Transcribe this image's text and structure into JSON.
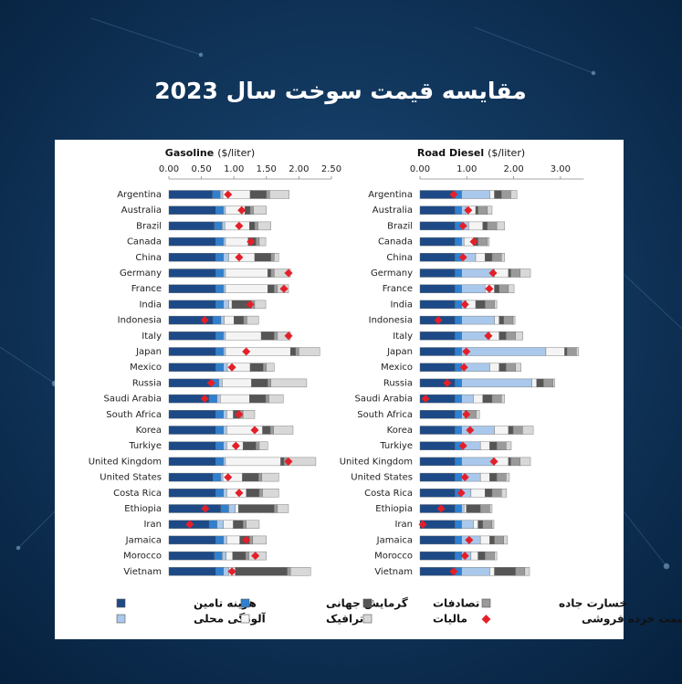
{
  "title": "مقایسه قیمت سوخت سال 2023",
  "chart_data": [
    {
      "type": "stacked-bar-h",
      "title": "Gasoline",
      "unit": "($/liter)",
      "categories": [
        "Argentina",
        "Australia",
        "Brazil",
        "Canada",
        "China",
        "Germany",
        "France",
        "India",
        "Indonesia",
        "Italy",
        "Japan",
        "Mexico",
        "Russia",
        "Saudi Arabia",
        "South Africa",
        "Korea",
        "Turkiye",
        "United Kingdom",
        "United States",
        "Costa Rica",
        "Ethiopia",
        "Iran",
        "Jamaica",
        "Morocco",
        "Vietnam"
      ],
      "xlim": [
        0,
        2.5
      ],
      "xticks": [
        {
          "value": 0,
          "label": "0.00"
        },
        {
          "value": 0.5,
          "label": "0.50"
        },
        {
          "value": 1,
          "label": "1.00"
        },
        {
          "value": 1.5,
          "label": "1.50"
        },
        {
          "value": 2,
          "label": "2.00"
        },
        {
          "value": 2.5,
          "label": "2.50"
        }
      ],
      "series": [
        {
          "name": "هزینه تامین",
          "color": "#1d4a86",
          "values": [
            0.67,
            0.72,
            0.7,
            0.72,
            0.72,
            0.72,
            0.72,
            0.72,
            0.68,
            0.72,
            0.72,
            0.72,
            0.65,
            0.62,
            0.72,
            0.72,
            0.72,
            0.72,
            0.68,
            0.72,
            0.8,
            0.62,
            0.72,
            0.7,
            0.72
          ]
        },
        {
          "name": "گرمایش جهانی",
          "color": "#2f80d0",
          "values": [
            0.12,
            0.12,
            0.12,
            0.12,
            0.12,
            0.12,
            0.12,
            0.12,
            0.12,
            0.12,
            0.12,
            0.12,
            0.12,
            0.12,
            0.12,
            0.12,
            0.12,
            0.12,
            0.12,
            0.12,
            0.12,
            0.12,
            0.12,
            0.12,
            0.12
          ]
        },
        {
          "name": "آلودگی محلی",
          "color": "#a9c8ec",
          "values": [
            0.04,
            0.03,
            0.04,
            0.03,
            0.08,
            0.03,
            0.03,
            0.08,
            0.05,
            0.03,
            0.03,
            0.06,
            0.05,
            0.05,
            0.05,
            0.05,
            0.05,
            0.03,
            0.03,
            0.05,
            0.1,
            0.1,
            0.05,
            0.06,
            0.08
          ]
        },
        {
          "name": "ترافیک",
          "color": "#f4f4f4",
          "values": [
            0.42,
            0.3,
            0.38,
            0.35,
            0.4,
            0.65,
            0.65,
            0.05,
            0.15,
            0.55,
            1.0,
            0.35,
            0.45,
            0.45,
            0.1,
            0.55,
            0.25,
            0.85,
            0.3,
            0.3,
            0.05,
            0.15,
            0.2,
            0.1,
            0.1
          ]
        },
        {
          "name": "تصادفات",
          "color": "#555555",
          "values": [
            0.25,
            0.08,
            0.08,
            0.12,
            0.25,
            0.05,
            0.1,
            0.3,
            0.15,
            0.2,
            0.08,
            0.2,
            0.25,
            0.25,
            0.1,
            0.12,
            0.2,
            0.05,
            0.25,
            0.2,
            0.55,
            0.15,
            0.15,
            0.2,
            0.8
          ]
        },
        {
          "name": "خسارت جاده",
          "color": "#9a9a9a",
          "values": [
            0.05,
            0.05,
            0.05,
            0.05,
            0.05,
            0.05,
            0.05,
            0.05,
            0.05,
            0.05,
            0.05,
            0.05,
            0.05,
            0.05,
            0.05,
            0.05,
            0.05,
            0.05,
            0.05,
            0.05,
            0.05,
            0.05,
            0.05,
            0.05,
            0.05
          ]
        },
        {
          "name": "مالیات",
          "color": "#d8d8d8",
          "values": [
            0.3,
            0.2,
            0.2,
            0.1,
            0.07,
            0.25,
            0.17,
            0.17,
            0.18,
            0.2,
            0.32,
            0.12,
            0.55,
            0.22,
            0.18,
            0.3,
            0.13,
            0.44,
            0.26,
            0.25,
            0.17,
            0.2,
            0.21,
            0.27,
            0.31
          ]
        }
      ],
      "retail_price": {
        "name": "قیمت خرده فروشی",
        "color": "#e3202a",
        "values": [
          0.91,
          1.12,
          1.08,
          1.26,
          1.08,
          1.84,
          1.77,
          1.25,
          0.55,
          1.84,
          1.19,
          0.97,
          0.65,
          0.55,
          1.08,
          1.32,
          1.03,
          1.84,
          0.91,
          1.08,
          0.56,
          0.32,
          1.19,
          1.33,
          0.97
        ]
      }
    },
    {
      "type": "stacked-bar-h",
      "title": "Road Diesel",
      "unit": "($/liter)",
      "categories": [
        "Argentina",
        "Australia",
        "Brazil",
        "Canada",
        "China",
        "Germany",
        "France",
        "India",
        "Indonesia",
        "Italy",
        "Japan",
        "Mexico",
        "Russia",
        "Saudi Arabia",
        "South Africa",
        "Korea",
        "Turkiye",
        "United Kingdom",
        "United States",
        "Costa Rica",
        "Ethiopia",
        "Iran",
        "Jamaica",
        "Morocco",
        "Vietnam"
      ],
      "xlim": [
        0,
        3.5
      ],
      "xticks": [
        {
          "value": 0,
          "label": "0.00"
        },
        {
          "value": 1,
          "label": "1.00"
        },
        {
          "value": 2,
          "label": "2.00"
        },
        {
          "value": 3,
          "label": "3.00"
        }
      ],
      "series": [
        {
          "name": "هزینه تامین",
          "color": "#1d4a86",
          "values": [
            0.75,
            0.75,
            0.75,
            0.75,
            0.75,
            0.75,
            0.75,
            0.75,
            0.75,
            0.75,
            0.75,
            0.75,
            0.75,
            0.75,
            0.75,
            0.75,
            0.75,
            0.75,
            0.75,
            0.75,
            0.75,
            0.75,
            0.75,
            0.75,
            0.75
          ]
        },
        {
          "name": "گرمایش جهانی",
          "color": "#2f80d0",
          "values": [
            0.14,
            0.14,
            0.14,
            0.14,
            0.14,
            0.14,
            0.14,
            0.14,
            0.14,
            0.14,
            0.14,
            0.14,
            0.14,
            0.14,
            0.14,
            0.14,
            0.14,
            0.14,
            0.14,
            0.14,
            0.14,
            0.14,
            0.14,
            0.14,
            0.14
          ]
        },
        {
          "name": "آلودگی محلی",
          "color": "#a9c8ec",
          "values": [
            0.6,
            0.1,
            0.15,
            0.05,
            0.3,
            0.7,
            0.5,
            0.1,
            0.7,
            0.6,
            1.8,
            0.6,
            1.5,
            0.25,
            0.03,
            0.7,
            0.4,
            0.7,
            0.4,
            0.2,
            0.05,
            0.25,
            0.4,
            0.2,
            0.6
          ]
        },
        {
          "name": "ترافیک",
          "color": "#f4f4f4",
          "values": [
            0.1,
            0.2,
            0.3,
            0.2,
            0.2,
            0.3,
            0.2,
            0.2,
            0.1,
            0.2,
            0.4,
            0.2,
            0.1,
            0.2,
            0.03,
            0.3,
            0.2,
            0.3,
            0.2,
            0.3,
            0.05,
            0.1,
            0.2,
            0.15,
            0.1
          ]
        },
        {
          "name": "تصادفات",
          "color": "#555555",
          "values": [
            0.15,
            0.05,
            0.1,
            0.1,
            0.15,
            0.05,
            0.1,
            0.2,
            0.1,
            0.15,
            0.05,
            0.15,
            0.15,
            0.2,
            0.05,
            0.1,
            0.15,
            0.05,
            0.15,
            0.15,
            0.3,
            0.1,
            0.1,
            0.15,
            0.45
          ]
        },
        {
          "name": "خسارت جاده",
          "color": "#9a9a9a",
          "values": [
            0.2,
            0.2,
            0.2,
            0.2,
            0.2,
            0.2,
            0.2,
            0.2,
            0.2,
            0.2,
            0.2,
            0.2,
            0.2,
            0.2,
            0.2,
            0.2,
            0.2,
            0.2,
            0.2,
            0.2,
            0.2,
            0.2,
            0.2,
            0.2,
            0.2
          ]
        },
        {
          "name": "مالیات",
          "color": "#d8d8d8",
          "values": [
            0.13,
            0.1,
            0.17,
            0.04,
            0.07,
            0.22,
            0.12,
            0.05,
            0.04,
            0.16,
            0.05,
            0.12,
            0.04,
            0.07,
            0.07,
            0.23,
            0.11,
            0.22,
            0.07,
            0.11,
            0.05,
            0.04,
            0.08,
            0.05,
            0.1
          ]
        }
      ],
      "retail_price": {
        "name": "قیمت خرده فروشی",
        "color": "#e3202a",
        "values": [
          0.72,
          1.03,
          0.92,
          1.15,
          0.92,
          1.56,
          1.48,
          0.96,
          0.39,
          1.46,
          0.99,
          0.94,
          0.58,
          0.12,
          0.99,
          1.07,
          0.92,
          1.58,
          0.96,
          0.88,
          0.45,
          0.06,
          1.05,
          0.96,
          0.72
        ]
      }
    }
  ]
}
